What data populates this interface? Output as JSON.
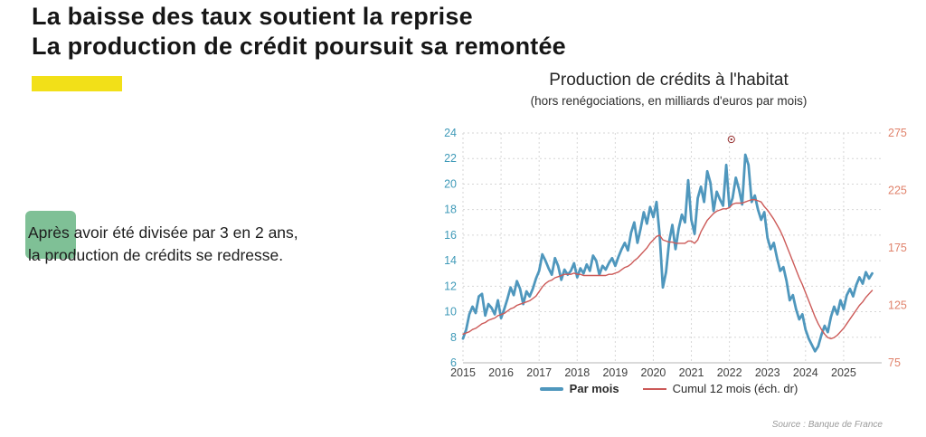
{
  "slide": {
    "title_line1": "La baisse des taux soutient la reprise",
    "title_line2": "La production de crédit poursuit sa remontée",
    "body_text": "Après avoir été divisée par 3 en 2 ans, la production de crédits se redresse.",
    "source": "Source : Banque de France"
  },
  "chart": {
    "title": "Production de crédits à l'habitat",
    "subtitle": "(hors renégociations, en milliards d'euros par mois)"
  },
  "chart_data": {
    "type": "line",
    "title": "Production de crédits à l'habitat",
    "subtitle": "(hors renégociations, en milliards d'euros par mois)",
    "x_start": 2015.0,
    "x_step_months": 1,
    "x_axis": {
      "min": 2015,
      "max": 2026,
      "ticks": [
        2015,
        2016,
        2017,
        2018,
        2019,
        2020,
        2021,
        2022,
        2023,
        2024,
        2025
      ],
      "label_color": "#3d3d3d"
    },
    "left_axis": {
      "min": 6,
      "max": 24,
      "ticks": [
        6,
        8,
        10,
        12,
        14,
        16,
        18,
        20,
        22,
        24
      ],
      "label_color": "#3f9ab8"
    },
    "right_axis": {
      "min": 75,
      "max": 275,
      "ticks": [
        75,
        125,
        175,
        225,
        275
      ],
      "label_color": "#e0826b"
    },
    "grid": {
      "on": true,
      "color": "#d6d6d6",
      "dash": "2,3"
    },
    "legend_position": "bottom",
    "annotation_marker": {
      "x": 2022.05,
      "y_left": 23.5,
      "color": "#8b1a1a"
    },
    "series": [
      {
        "name": "Par mois",
        "axis": "left",
        "color": "#4f97bd",
        "width": 2.8,
        "values": [
          7.9,
          8.6,
          9.8,
          10.4,
          9.9,
          11.2,
          11.4,
          9.7,
          10.6,
          10.3,
          9.8,
          10.9,
          9.5,
          10.2,
          11.0,
          11.9,
          11.3,
          12.4,
          11.8,
          10.6,
          11.6,
          11.2,
          11.8,
          12.6,
          13.2,
          14.5,
          14.0,
          13.4,
          12.9,
          14.2,
          13.6,
          12.5,
          13.3,
          12.9,
          13.2,
          13.8,
          12.7,
          13.4,
          13.0,
          13.7,
          13.2,
          14.4,
          14.0,
          12.9,
          13.6,
          13.3,
          13.8,
          14.2,
          13.6,
          14.3,
          14.9,
          15.4,
          14.8,
          16.2,
          17.0,
          15.4,
          16.5,
          17.8,
          16.9,
          18.2,
          17.4,
          18.6,
          16.0,
          11.9,
          13.1,
          15.5,
          16.8,
          14.9,
          16.5,
          17.6,
          17.0,
          20.3,
          17.2,
          16.1,
          18.9,
          19.8,
          18.6,
          21.0,
          20.1,
          17.9,
          19.4,
          18.8,
          18.3,
          21.5,
          18.2,
          18.9,
          20.5,
          19.6,
          18.4,
          22.3,
          21.5,
          18.6,
          19.1,
          18.0,
          17.2,
          17.8,
          15.8,
          14.9,
          15.4,
          14.2,
          13.2,
          13.5,
          12.4,
          10.9,
          11.3,
          10.2,
          9.4,
          9.8,
          8.6,
          7.9,
          7.4,
          6.9,
          7.3,
          8.2,
          8.9,
          8.4,
          9.6,
          10.4,
          9.8,
          10.9,
          10.2,
          11.3,
          11.8,
          11.2,
          12.1,
          12.7,
          12.2,
          13.1,
          12.6,
          13.0
        ]
      },
      {
        "name": "Cumul 12 mois (éch. dr)",
        "axis": "right",
        "color": "#cc5a58",
        "width": 1.4,
        "values": [
          100,
          101,
          102,
          104,
          105,
          107,
          109,
          110,
          112,
          113,
          114,
          116,
          117,
          118,
          120,
          122,
          123,
          125,
          126,
          127,
          128,
          129,
          131,
          133,
          137,
          141,
          144,
          146,
          147,
          149,
          150,
          151,
          152,
          152,
          152,
          153,
          152,
          152,
          151,
          151,
          151,
          151,
          151,
          151,
          151,
          151,
          152,
          152,
          153,
          154,
          156,
          158,
          159,
          161,
          164,
          166,
          169,
          172,
          175,
          179,
          182,
          185,
          186,
          182,
          181,
          180,
          180,
          179,
          179,
          179,
          179,
          181,
          181,
          179,
          182,
          189,
          194,
          199,
          202,
          205,
          207,
          208,
          209,
          209,
          210,
          213,
          214,
          214,
          214,
          215,
          216,
          217,
          217,
          216,
          215,
          211,
          208,
          204,
          200,
          195,
          190,
          184,
          177,
          170,
          163,
          156,
          149,
          143,
          136,
          129,
          122,
          115,
          109,
          104,
          100,
          97,
          96,
          97,
          99,
          102,
          105,
          109,
          113,
          117,
          121,
          125,
          128,
          132,
          135,
          138
        ]
      }
    ]
  }
}
